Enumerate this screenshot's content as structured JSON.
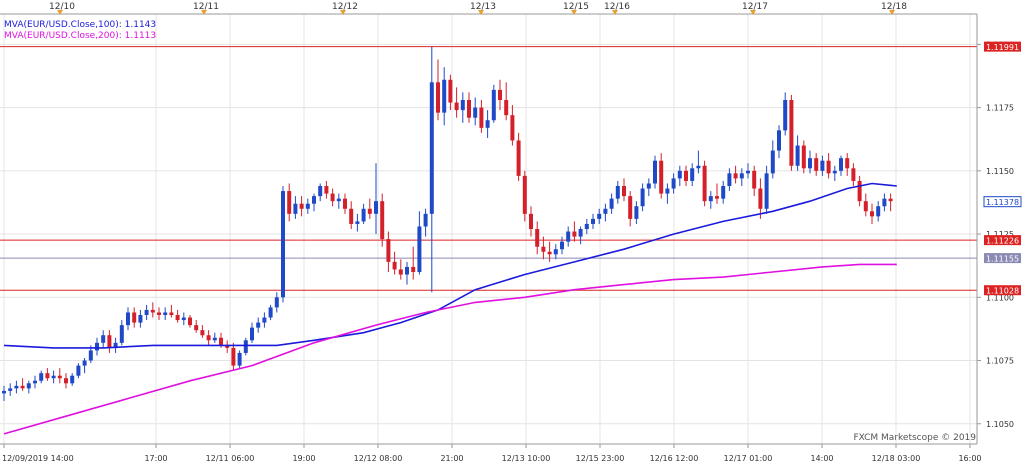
{
  "chart_data": {
    "type": "candlestick",
    "symbol": "EUR/USD",
    "watermark": "FXCM Marketscope © 2019",
    "ylim": [
      1.1042,
      1.1212
    ],
    "y_ticks": [
      "1.1200",
      "1.1175",
      "1.1150",
      "1.1125",
      "1.1100",
      "1.1075",
      "1.1050"
    ],
    "y_tick_values": [
      1.12,
      1.1175,
      1.115,
      1.1125,
      1.11,
      1.1075,
      1.105
    ],
    "x_tick_labels": [
      "12/09/2019 14:00",
      "17:00",
      "12/11 06:00",
      "19:00",
      "12/12 08:00",
      "21:00",
      "12/13 10:00",
      "12/15 23:00",
      "12/16 12:00",
      "12/17 01:00",
      "14:00",
      "12/18 03:00",
      "16:00"
    ],
    "date_markers": [
      "12/10",
      "12/11",
      "12/12",
      "12/13",
      "12/15",
      "12/16",
      "12/17",
      "12/18"
    ],
    "legend": [
      {
        "label": "MVA(EUR/USD.Close,100): 1.1143",
        "color": "#1a1adc"
      },
      {
        "label": "MVA(EUR/USD.Close,200): 1.1113",
        "color": "#e010e0"
      }
    ],
    "horizontal_lines": [
      {
        "label": "1.11991",
        "value": 1.11991,
        "color": "#dd2222"
      },
      {
        "label": "1.11226",
        "value": 1.11226,
        "color": "#dd2222"
      },
      {
        "label": "1.11155",
        "value": 1.11155,
        "color": "#8a8ab5"
      },
      {
        "label": "1.11028",
        "value": 1.11028,
        "color": "#dd2222"
      }
    ],
    "current_price": {
      "label": "1.11378",
      "value": 1.11378
    },
    "candles": [
      [
        1.1062,
        1.1065,
        1.1059,
        1.1063
      ],
      [
        1.1063,
        1.1066,
        1.1061,
        1.1064
      ],
      [
        1.1064,
        1.1067,
        1.1062,
        1.1065
      ],
      [
        1.1065,
        1.1068,
        1.1063,
        1.1064
      ],
      [
        1.1064,
        1.1067,
        1.1062,
        1.1066
      ],
      [
        1.1066,
        1.1069,
        1.1064,
        1.1067
      ],
      [
        1.1067,
        1.1071,
        1.1066,
        1.107
      ],
      [
        1.107,
        1.1072,
        1.1067,
        1.1068
      ],
      [
        1.1068,
        1.1071,
        1.1066,
        1.1069
      ],
      [
        1.1069,
        1.1072,
        1.1066,
        1.1068
      ],
      [
        1.1068,
        1.107,
        1.1064,
        1.1066
      ],
      [
        1.1066,
        1.107,
        1.1065,
        1.1069
      ],
      [
        1.1069,
        1.1074,
        1.1068,
        1.1073
      ],
      [
        1.1073,
        1.1076,
        1.107,
        1.1075
      ],
      [
        1.1075,
        1.1081,
        1.1074,
        1.1079
      ],
      [
        1.1079,
        1.1084,
        1.1077,
        1.1082
      ],
      [
        1.1082,
        1.1087,
        1.108,
        1.1085
      ],
      [
        1.1085,
        1.1087,
        1.1078,
        1.108
      ],
      [
        1.108,
        1.1084,
        1.1078,
        1.1082
      ],
      [
        1.1082,
        1.1091,
        1.1081,
        1.1089
      ],
      [
        1.1089,
        1.1096,
        1.1087,
        1.1094
      ],
      [
        1.1094,
        1.1096,
        1.1088,
        1.109
      ],
      [
        1.109,
        1.1095,
        1.1088,
        1.1093
      ],
      [
        1.1093,
        1.1097,
        1.1091,
        1.1095
      ],
      [
        1.1095,
        1.1098,
        1.1092,
        1.1094
      ],
      [
        1.1094,
        1.1096,
        1.1091,
        1.1093
      ],
      [
        1.1093,
        1.1096,
        1.1091,
        1.1094
      ],
      [
        1.1094,
        1.1097,
        1.1092,
        1.1093
      ],
      [
        1.1093,
        1.1095,
        1.109,
        1.1091
      ],
      [
        1.1091,
        1.1094,
        1.1089,
        1.1092
      ],
      [
        1.1092,
        1.1093,
        1.1088,
        1.1089
      ],
      [
        1.1089,
        1.1091,
        1.1086,
        1.1087
      ],
      [
        1.1087,
        1.1089,
        1.1084,
        1.1085
      ],
      [
        1.1085,
        1.1087,
        1.1081,
        1.1083
      ],
      [
        1.1083,
        1.1086,
        1.1082,
        1.1084
      ],
      [
        1.1084,
        1.1086,
        1.108,
        1.1081
      ],
      [
        1.1081,
        1.1083,
        1.1078,
        1.108
      ],
      [
        1.108,
        1.1082,
        1.1071,
        1.1073
      ],
      [
        1.1073,
        1.1079,
        1.1072,
        1.1078
      ],
      [
        1.1078,
        1.1084,
        1.1077,
        1.1083
      ],
      [
        1.1083,
        1.109,
        1.1082,
        1.1088
      ],
      [
        1.1088,
        1.1092,
        1.1086,
        1.109
      ],
      [
        1.109,
        1.1094,
        1.1088,
        1.1092
      ],
      [
        1.1092,
        1.1097,
        1.1091,
        1.1096
      ],
      [
        1.1096,
        1.1102,
        1.1094,
        1.11
      ],
      [
        1.11,
        1.1144,
        1.1098,
        1.1142
      ],
      [
        1.1142,
        1.1145,
        1.113,
        1.1133
      ],
      [
        1.1133,
        1.114,
        1.1131,
        1.1137
      ],
      [
        1.1137,
        1.114,
        1.1132,
        1.1135
      ],
      [
        1.1135,
        1.1139,
        1.1133,
        1.1137
      ],
      [
        1.1137,
        1.1141,
        1.1134,
        1.114
      ],
      [
        1.114,
        1.1145,
        1.1138,
        1.1144
      ],
      [
        1.1144,
        1.1146,
        1.1139,
        1.1141
      ],
      [
        1.1141,
        1.1143,
        1.1136,
        1.1138
      ],
      [
        1.1138,
        1.1141,
        1.1135,
        1.1139
      ],
      [
        1.1139,
        1.1141,
        1.1133,
        1.1135
      ],
      [
        1.1135,
        1.1138,
        1.1127,
        1.1129
      ],
      [
        1.1129,
        1.1133,
        1.1126,
        1.113
      ],
      [
        1.113,
        1.1137,
        1.1129,
        1.1135
      ],
      [
        1.1135,
        1.1139,
        1.1131,
        1.1133
      ],
      [
        1.1133,
        1.1153,
        1.1125,
        1.1138
      ],
      [
        1.1138,
        1.1141,
        1.112,
        1.1123
      ],
      [
        1.1123,
        1.1126,
        1.111,
        1.1114
      ],
      [
        1.1114,
        1.1118,
        1.1109,
        1.1111
      ],
      [
        1.1111,
        1.1115,
        1.1107,
        1.1109
      ],
      [
        1.1109,
        1.1114,
        1.1105,
        1.1112
      ],
      [
        1.1112,
        1.112,
        1.1107,
        1.111
      ],
      [
        1.111,
        1.1134,
        1.1109,
        1.1128
      ],
      [
        1.1128,
        1.1135,
        1.1124,
        1.1133
      ],
      [
        1.1133,
        1.1199,
        1.1102,
        1.1185
      ],
      [
        1.1185,
        1.1194,
        1.117,
        1.1173
      ],
      [
        1.1173,
        1.1191,
        1.1168,
        1.1186
      ],
      [
        1.1186,
        1.1188,
        1.1174,
        1.1177
      ],
      [
        1.1177,
        1.1183,
        1.1171,
        1.1174
      ],
      [
        1.1174,
        1.1181,
        1.1169,
        1.1178
      ],
      [
        1.1178,
        1.1181,
        1.1169,
        1.1171
      ],
      [
        1.1171,
        1.1179,
        1.1168,
        1.1175
      ],
      [
        1.1175,
        1.1178,
        1.1165,
        1.1167
      ],
      [
        1.1167,
        1.1174,
        1.1163,
        1.117
      ],
      [
        1.117,
        1.1184,
        1.1169,
        1.1182
      ],
      [
        1.1182,
        1.1186,
        1.1174,
        1.1178
      ],
      [
        1.1178,
        1.1185,
        1.117,
        1.1172
      ],
      [
        1.1172,
        1.1176,
        1.116,
        1.1162
      ],
      [
        1.1162,
        1.1165,
        1.1146,
        1.1148
      ],
      [
        1.1148,
        1.115,
        1.113,
        1.1133
      ],
      [
        1.1133,
        1.1136,
        1.1124,
        1.1127
      ],
      [
        1.1127,
        1.113,
        1.1117,
        1.112
      ],
      [
        1.112,
        1.1124,
        1.1115,
        1.1118
      ],
      [
        1.1118,
        1.1122,
        1.1114,
        1.1117
      ],
      [
        1.1117,
        1.1121,
        1.1115,
        1.1119
      ],
      [
        1.1119,
        1.1124,
        1.1117,
        1.1122
      ],
      [
        1.1122,
        1.1128,
        1.112,
        1.1126
      ],
      [
        1.1126,
        1.113,
        1.1122,
        1.1124
      ],
      [
        1.1124,
        1.1128,
        1.1121,
        1.1127
      ],
      [
        1.1127,
        1.1131,
        1.1125,
        1.1129
      ],
      [
        1.1129,
        1.1133,
        1.1127,
        1.1131
      ],
      [
        1.1131,
        1.1135,
        1.1129,
        1.1133
      ],
      [
        1.1133,
        1.1137,
        1.113,
        1.1135
      ],
      [
        1.1135,
        1.1141,
        1.1133,
        1.1139
      ],
      [
        1.1139,
        1.1146,
        1.1137,
        1.1144
      ],
      [
        1.1144,
        1.1147,
        1.1138,
        1.114
      ],
      [
        1.114,
        1.1142,
        1.1128,
        1.1131
      ],
      [
        1.1131,
        1.1138,
        1.1129,
        1.1136
      ],
      [
        1.1136,
        1.1145,
        1.1134,
        1.1143
      ],
      [
        1.1143,
        1.1147,
        1.114,
        1.1145
      ],
      [
        1.1145,
        1.1156,
        1.1143,
        1.1154
      ],
      [
        1.1154,
        1.1157,
        1.1139,
        1.1141
      ],
      [
        1.1141,
        1.1145,
        1.1137,
        1.1143
      ],
      [
        1.1143,
        1.1149,
        1.1141,
        1.1147
      ],
      [
        1.1147,
        1.1152,
        1.1144,
        1.115
      ],
      [
        1.115,
        1.1152,
        1.1144,
        1.1146
      ],
      [
        1.1146,
        1.1153,
        1.1144,
        1.1151
      ],
      [
        1.1151,
        1.1158,
        1.1149,
        1.1152
      ],
      [
        1.1152,
        1.1154,
        1.1136,
        1.1138
      ],
      [
        1.1138,
        1.1142,
        1.1135,
        1.114
      ],
      [
        1.114,
        1.1145,
        1.1137,
        1.1139
      ],
      [
        1.1139,
        1.1146,
        1.1137,
        1.1144
      ],
      [
        1.1144,
        1.1151,
        1.1142,
        1.1149
      ],
      [
        1.1149,
        1.1152,
        1.1145,
        1.1147
      ],
      [
        1.1147,
        1.1151,
        1.1144,
        1.1149
      ],
      [
        1.1149,
        1.1153,
        1.1147,
        1.115
      ],
      [
        1.115,
        1.1152,
        1.114,
        1.1143
      ],
      [
        1.1143,
        1.1147,
        1.1131,
        1.1135
      ],
      [
        1.1135,
        1.1152,
        1.1133,
        1.1149
      ],
      [
        1.1149,
        1.1162,
        1.1147,
        1.1158
      ],
      [
        1.1158,
        1.1168,
        1.1155,
        1.1166
      ],
      [
        1.1166,
        1.1181,
        1.1164,
        1.1178
      ],
      [
        1.1178,
        1.118,
        1.115,
        1.1152
      ],
      [
        1.1152,
        1.1164,
        1.115,
        1.116
      ],
      [
        1.116,
        1.1162,
        1.1149,
        1.1151
      ],
      [
        1.1151,
        1.1158,
        1.1149,
        1.1155
      ],
      [
        1.1155,
        1.1157,
        1.1148,
        1.115
      ],
      [
        1.115,
        1.1156,
        1.1148,
        1.1154
      ],
      [
        1.1154,
        1.1157,
        1.1147,
        1.1149
      ],
      [
        1.1149,
        1.1152,
        1.1146,
        1.115
      ],
      [
        1.115,
        1.1156,
        1.1148,
        1.1155
      ],
      [
        1.1155,
        1.1157,
        1.1148,
        1.1151
      ],
      [
        1.1151,
        1.1153,
        1.1144,
        1.1146
      ],
      [
        1.1146,
        1.1148,
        1.1136,
        1.1138
      ],
      [
        1.1138,
        1.1141,
        1.1132,
        1.1134
      ],
      [
        1.1134,
        1.1137,
        1.1129,
        1.1132
      ],
      [
        1.1132,
        1.1138,
        1.113,
        1.1136
      ],
      [
        1.1136,
        1.1141,
        1.1134,
        1.1139
      ],
      [
        1.1139,
        1.1141,
        1.1134,
        1.1138
      ]
    ],
    "ma100": [
      [
        0,
        1.1081
      ],
      [
        8,
        1.108
      ],
      [
        16,
        1.108
      ],
      [
        24,
        1.1081
      ],
      [
        32,
        1.1081
      ],
      [
        44,
        1.1081
      ],
      [
        50,
        1.1083
      ],
      [
        58,
        1.1086
      ],
      [
        64,
        1.109
      ],
      [
        70,
        1.1095
      ],
      [
        76,
        1.1103
      ],
      [
        84,
        1.1109
      ],
      [
        92,
        1.1114
      ],
      [
        100,
        1.1119
      ],
      [
        108,
        1.1125
      ],
      [
        116,
        1.113
      ],
      [
        124,
        1.1134
      ],
      [
        130,
        1.1138
      ],
      [
        136,
        1.1143
      ],
      [
        140,
        1.1145
      ],
      [
        144,
        1.1144
      ]
    ],
    "ma200": [
      [
        0,
        1.1046
      ],
      [
        10,
        1.1053
      ],
      [
        20,
        1.106
      ],
      [
        30,
        1.1067
      ],
      [
        40,
        1.1073
      ],
      [
        50,
        1.1082
      ],
      [
        60,
        1.1089
      ],
      [
        68,
        1.1094
      ],
      [
        76,
        1.1098
      ],
      [
        84,
        1.11
      ],
      [
        92,
        1.1103
      ],
      [
        100,
        1.1105
      ],
      [
        108,
        1.1107
      ],
      [
        116,
        1.1108
      ],
      [
        124,
        1.111
      ],
      [
        132,
        1.1112
      ],
      [
        138,
        1.1113
      ],
      [
        144,
        1.1113
      ]
    ]
  }
}
